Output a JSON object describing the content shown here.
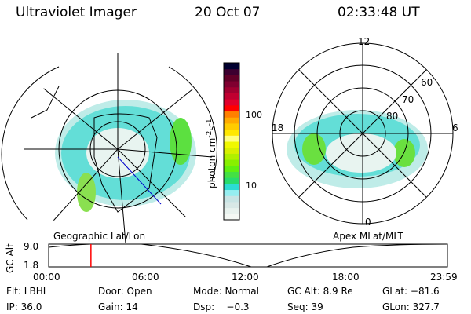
{
  "header": {
    "instrument": "Ultraviolet Imager",
    "date": "20 Oct 07",
    "time": "02:33:48 UT"
  },
  "left_map": {
    "label": "Geographic Lat/Lon"
  },
  "right_map": {
    "label": "Apex MLat/MLT",
    "mlt_labels": [
      "12",
      "18",
      "6",
      "0"
    ],
    "lat_labels": [
      "60",
      "70",
      "80"
    ]
  },
  "colorbar": {
    "unit": "photon cm",
    "exp1": "-2",
    "s": "s",
    "exp2": "-1",
    "ticks": [
      "100",
      "10"
    ],
    "colors": [
      "#f4f8f4",
      "#e8f2ee",
      "#d8e8e6",
      "#c8e4e4",
      "#96eef0",
      "#2cdcd4",
      "#28dc6c",
      "#44e044",
      "#60f010",
      "#88f000",
      "#b0f000",
      "#d8f000",
      "#f0f800",
      "#ffff80",
      "#ffe800",
      "#ffcc00",
      "#ffaa00",
      "#ff8000",
      "#ff0000",
      "#e0002c",
      "#c00030",
      "#a00030",
      "#800030",
      "#600028",
      "#3c0030",
      "#000030"
    ]
  },
  "timeline": {
    "ylabel": "GC Alt",
    "yticks": [
      "9.0",
      "1.8"
    ],
    "xticks": [
      "00:00",
      "06:00",
      "12:00",
      "18:00",
      "23:59"
    ],
    "marker_fraction": 0.106,
    "marker_color": "#ff0000"
  },
  "status": {
    "flt": "Flt: LBHL",
    "ip": "IP: 36.0",
    "door": "Door: Open",
    "gain": "Gain: 14",
    "mode": "Mode: Normal",
    "dsp": "Dsp:    −0.3",
    "gcalt": "GC Alt: 8.9 Re",
    "seq": "Seq: 39",
    "glat": "GLat: −81.6",
    "glon": "GLon: 327.7"
  }
}
